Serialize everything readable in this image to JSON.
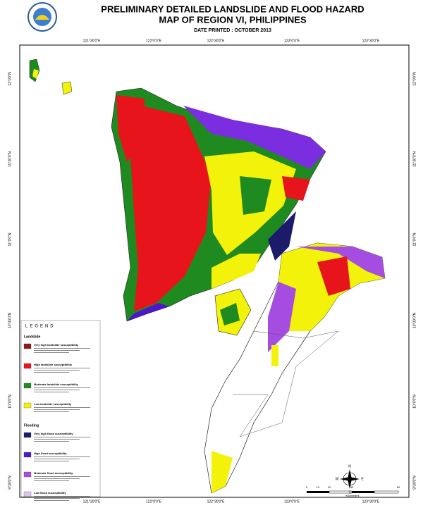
{
  "header": {
    "title_line1": "PRELIMINARY DETAILED LANDSLIDE AND FLOOD HAZARD",
    "title_line2": "MAP OF REGION VI, PHILIPPINES",
    "date": "DATE PRINTED : OCTOBER 2013"
  },
  "graticule": {
    "longitudes": [
      "121°30'0\"E",
      "122°0'0\"E",
      "122°30'0\"E",
      "123°0'0\"E",
      "123°30'0\"E"
    ],
    "latitudes": [
      "12°0'0\"N",
      "11°30'0\"N",
      "11°0'0\"N",
      "10°30'0\"N",
      "10°0'0\"N",
      "9°30'0\"N"
    ]
  },
  "legend": {
    "title": "LEGEND",
    "groups": [
      {
        "title": "Landslide",
        "items": [
          {
            "label": "Very high landslide susceptibility",
            "color": "#8b1a1a"
          },
          {
            "label": "High landslide susceptibility",
            "color": "#e8141b"
          },
          {
            "label": "Moderate landslide susceptibility",
            "color": "#1f8a1f"
          },
          {
            "label": "Low landslide susceptibility",
            "color": "#f2f20a"
          }
        ]
      },
      {
        "title": "Flooding",
        "items": [
          {
            "label": "Very high flood susceptibility",
            "color": "#1c1a6b"
          },
          {
            "label": "High flood susceptibility",
            "color": "#4b17c9"
          },
          {
            "label": "Moderate flood susceptibility",
            "color": "#a54de0"
          },
          {
            "label": "Low flood susceptibility",
            "color": "#d8c8ee"
          }
        ]
      }
    ]
  },
  "scale": {
    "ticks": [
      "0",
      "10",
      "20",
      "40",
      "60"
    ],
    "unit": "Kilometers"
  },
  "compass": {
    "n": "N",
    "s": "S",
    "e": "E",
    "w": "W"
  }
}
